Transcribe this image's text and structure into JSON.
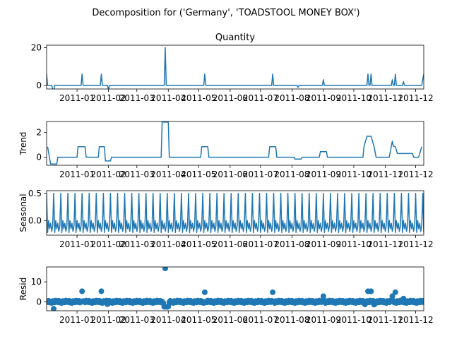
{
  "figure": {
    "suptitle": "Decomposition for ('Germany', 'TOADSTOOL MONEY BOX')"
  },
  "colors": {
    "line": "#1f77b4",
    "marker": "#1f77b4",
    "axis": "#000000"
  },
  "chart_data": [
    {
      "type": "line",
      "title": "Quantity",
      "ylabel": "",
      "ylim": [
        -1.9,
        21.3
      ],
      "yticks": [
        0,
        20
      ],
      "xlim": [
        "2010-12-02",
        "2011-12-09"
      ],
      "xticks": [
        "2011-01",
        "2011-02",
        "2011-03",
        "2011-04",
        "2011-05",
        "2011-06",
        "2011-07",
        "2011-08",
        "2011-09",
        "2011-10",
        "2011-11",
        "2011-12"
      ],
      "points": [
        [
          "2010-12-02",
          6
        ],
        [
          "2010-12-03",
          0
        ],
        [
          "2010-12-07",
          0
        ],
        [
          "2010-12-09",
          -4
        ],
        [
          "2010-12-10",
          0
        ],
        [
          "2011-01-05",
          0
        ],
        [
          "2011-01-06",
          6
        ],
        [
          "2011-01-07",
          0
        ],
        [
          "2011-01-24",
          0
        ],
        [
          "2011-01-25",
          6
        ],
        [
          "2011-01-26",
          0
        ],
        [
          "2011-01-31",
          0
        ],
        [
          "2011-02-01",
          -2
        ],
        [
          "2011-02-02",
          0
        ],
        [
          "2011-03-28",
          0
        ],
        [
          "2011-03-29",
          20
        ],
        [
          "2011-03-30",
          0
        ],
        [
          "2011-05-06",
          0
        ],
        [
          "2011-05-07",
          6
        ],
        [
          "2011-05-08",
          0
        ],
        [
          "2011-07-12",
          0
        ],
        [
          "2011-07-13",
          6
        ],
        [
          "2011-07-14",
          0
        ],
        [
          "2011-08-06",
          0
        ],
        [
          "2011-08-07",
          -1
        ],
        [
          "2011-08-08",
          0
        ],
        [
          "2011-08-31",
          0
        ],
        [
          "2011-09-01",
          3
        ],
        [
          "2011-09-02",
          0
        ],
        [
          "2011-10-14",
          0
        ],
        [
          "2011-10-15",
          6
        ],
        [
          "2011-10-16",
          0
        ],
        [
          "2011-10-17",
          0
        ],
        [
          "2011-10-18",
          6
        ],
        [
          "2011-10-19",
          0
        ],
        [
          "2011-11-07",
          0
        ],
        [
          "2011-11-08",
          3
        ],
        [
          "2011-11-09",
          0
        ],
        [
          "2011-11-10",
          0
        ],
        [
          "2011-11-11",
          6
        ],
        [
          "2011-11-12",
          0
        ],
        [
          "2011-11-18",
          0
        ],
        [
          "2011-11-19",
          2
        ],
        [
          "2011-11-20",
          0
        ],
        [
          "2011-12-07",
          0
        ],
        [
          "2011-12-09",
          6
        ]
      ]
    },
    {
      "type": "line",
      "title": "",
      "ylabel": "Trend",
      "ylim": [
        -0.65,
        2.9
      ],
      "yticks": [
        0,
        2
      ],
      "xlim": [
        "2010-12-02",
        "2011-12-09"
      ],
      "xticks": [
        "2011-01",
        "2011-02",
        "2011-03",
        "2011-04",
        "2011-05",
        "2011-06",
        "2011-07",
        "2011-08",
        "2011-09",
        "2011-10",
        "2011-11",
        "2011-12"
      ],
      "points": [
        [
          "2010-12-03",
          0.85
        ],
        [
          "2010-12-06",
          -0.55
        ],
        [
          "2010-12-12",
          -0.55
        ],
        [
          "2010-12-13",
          0.0
        ],
        [
          "2010-12-17",
          0.0
        ],
        [
          "2010-12-18",
          0.0
        ],
        [
          "2011-01-01",
          0.0
        ],
        [
          "2011-01-02",
          0.85
        ],
        [
          "2011-01-09",
          0.85
        ],
        [
          "2011-01-10",
          0.0
        ],
        [
          "2011-01-22",
          0.0
        ],
        [
          "2011-01-23",
          0.85
        ],
        [
          "2011-01-28",
          0.85
        ],
        [
          "2011-01-29",
          -0.3
        ],
        [
          "2011-02-03",
          -0.3
        ],
        [
          "2011-02-04",
          0.0
        ],
        [
          "2011-03-25",
          0.0
        ],
        [
          "2011-03-26",
          2.85
        ],
        [
          "2011-04-01",
          2.85
        ],
        [
          "2011-04-02",
          0.0
        ],
        [
          "2011-05-03",
          0.0
        ],
        [
          "2011-05-04",
          0.85
        ],
        [
          "2011-05-10",
          0.85
        ],
        [
          "2011-05-11",
          0.0
        ],
        [
          "2011-07-09",
          0.0
        ],
        [
          "2011-07-10",
          0.85
        ],
        [
          "2011-07-16",
          0.85
        ],
        [
          "2011-07-17",
          0.0
        ],
        [
          "2011-08-03",
          0.0
        ],
        [
          "2011-08-04",
          -0.15
        ],
        [
          "2011-08-10",
          -0.15
        ],
        [
          "2011-08-11",
          0.0
        ],
        [
          "2011-08-28",
          0.0
        ],
        [
          "2011-08-29",
          0.45
        ],
        [
          "2011-09-04",
          0.45
        ],
        [
          "2011-09-05",
          0.0
        ],
        [
          "2011-10-10",
          0.0
        ],
        [
          "2011-10-11",
          0.85
        ],
        [
          "2011-10-14",
          1.7
        ],
        [
          "2011-10-18",
          1.7
        ],
        [
          "2011-10-21",
          0.85
        ],
        [
          "2011-10-23",
          0.0
        ],
        [
          "2011-11-05",
          0.0
        ],
        [
          "2011-11-06",
          0.45
        ],
        [
          "2011-11-08",
          1.3
        ],
        [
          "2011-11-09",
          0.9
        ],
        [
          "2011-11-11",
          0.85
        ],
        [
          "2011-11-13",
          0.3
        ],
        [
          "2011-11-15",
          0.3
        ],
        [
          "2011-11-18",
          0.3
        ],
        [
          "2011-11-21",
          0.3
        ],
        [
          "2011-11-28",
          0.3
        ],
        [
          "2011-11-29",
          0.0
        ],
        [
          "2011-12-04",
          0.0
        ],
        [
          "2011-12-07",
          0.85
        ]
      ]
    },
    {
      "type": "line",
      "title": "",
      "ylabel": "Seasonal",
      "ylim": [
        -0.27,
        0.55
      ],
      "yticks": [
        0.0,
        0.5
      ],
      "xlim": [
        "2010-12-02",
        "2011-12-09"
      ],
      "xticks": [
        "2011-01",
        "2011-02",
        "2011-03",
        "2011-04",
        "2011-05",
        "2011-06",
        "2011-07",
        "2011-08",
        "2011-09",
        "2011-10",
        "2011-11",
        "2011-12"
      ],
      "period_days": 7,
      "pattern": [
        0.5,
        -0.22,
        0.0,
        -0.15,
        -0.05,
        -0.2,
        -0.1
      ]
    },
    {
      "type": "scatter",
      "title": "",
      "ylabel": "Resid",
      "ylim": [
        -4.5,
        17.5
      ],
      "yticks": [
        0,
        10
      ],
      "xlim": [
        "2010-12-02",
        "2011-12-09"
      ],
      "xticks": [
        "2011-01",
        "2011-02",
        "2011-03",
        "2011-04",
        "2011-05",
        "2011-06",
        "2011-07",
        "2011-08",
        "2011-09",
        "2011-10",
        "2011-11",
        "2011-12"
      ],
      "outliers": [
        [
          "2010-12-09",
          -3.5
        ],
        [
          "2011-01-06",
          5.3
        ],
        [
          "2011-01-25",
          5.3
        ],
        [
          "2011-01-31",
          -1.2
        ],
        [
          "2011-03-28",
          -2.5
        ],
        [
          "2011-03-29",
          16.8
        ],
        [
          "2011-03-30",
          -2.5
        ],
        [
          "2011-03-31",
          -2.6
        ],
        [
          "2011-04-01",
          -2.4
        ],
        [
          "2011-05-07",
          4.8
        ],
        [
          "2011-07-13",
          4.8
        ],
        [
          "2011-09-01",
          2.8
        ],
        [
          "2011-10-15",
          5.3
        ],
        [
          "2011-10-18",
          5.3
        ],
        [
          "2011-10-12",
          -1.3
        ],
        [
          "2011-10-21",
          -1.4
        ],
        [
          "2011-11-08",
          2.8
        ],
        [
          "2011-11-11",
          4.8
        ],
        [
          "2011-11-19",
          1.6
        ],
        [
          "2011-12-09",
          0.5
        ]
      ]
    }
  ]
}
